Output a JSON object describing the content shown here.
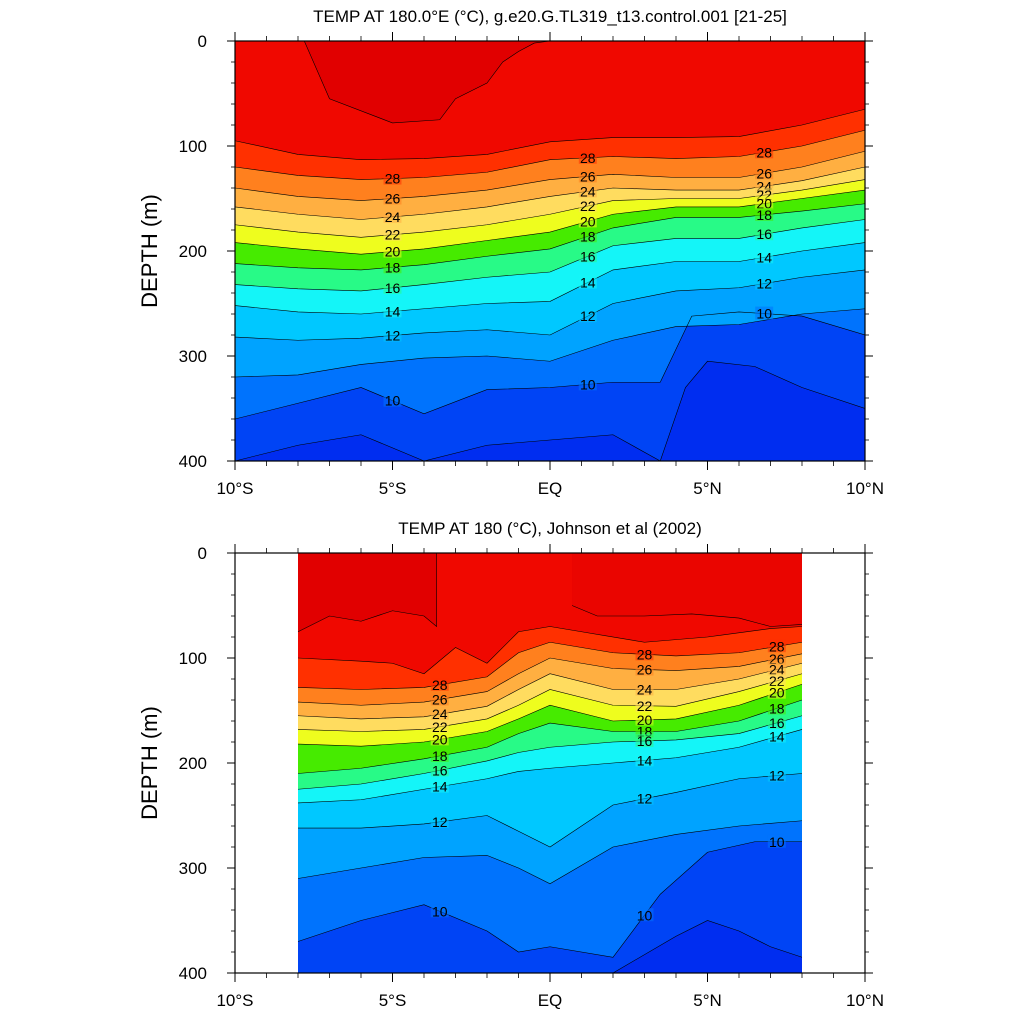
{
  "chart_data": [
    {
      "type": "contour",
      "title": "TEMP AT 180.0°E (°C), g.e20.G.TL319_t13.control.001 [21-25]",
      "xlabel": "",
      "ylabel": "DEPTH (m)",
      "xlim": [
        -10,
        10
      ],
      "ylim": [
        0,
        400
      ],
      "y_inverted": true,
      "x_ticks": [
        {
          "value": -10,
          "label": "10°S"
        },
        {
          "value": -5,
          "label": "5°S"
        },
        {
          "value": 0,
          "label": "EQ"
        },
        {
          "value": 5,
          "label": "5°N"
        },
        {
          "value": 10,
          "label": "10°N"
        }
      ],
      "y_ticks": [
        0,
        100,
        200,
        300,
        400
      ],
      "data_x_range": [
        -10,
        10
      ],
      "contour_interval": 1,
      "contour_levels_labeled": [
        28,
        26,
        24,
        22,
        20,
        18,
        16,
        14,
        12,
        10
      ],
      "isotherms": [
        {
          "level": 29.5,
          "x": [
            -7.8,
            -7.0,
            -5.0,
            -3.5,
            -3.0,
            -2.0,
            -1.5,
            -1.0,
            -0.5,
            0.0
          ],
          "depth": [
            0,
            55,
            78,
            75,
            55,
            40,
            20,
            10,
            2,
            0
          ]
        },
        {
          "level": 29.0,
          "x": [
            -10,
            -8,
            -6,
            -4,
            -2,
            0,
            2,
            4,
            6,
            8,
            10
          ],
          "depth": [
            95,
            108,
            113,
            112,
            108,
            96,
            92,
            92,
            91,
            80,
            65
          ]
        },
        {
          "level": 28,
          "x": [
            -10,
            -8,
            -6,
            -4,
            -2,
            0,
            2,
            4,
            6,
            8,
            10
          ],
          "depth": [
            120,
            128,
            132,
            130,
            125,
            113,
            110,
            112,
            110,
            100,
            85
          ]
        },
        {
          "level": 26,
          "x": [
            -10,
            -8,
            -6,
            -4,
            -2,
            0,
            2,
            4,
            6,
            8,
            10
          ],
          "depth": [
            140,
            148,
            152,
            148,
            142,
            132,
            127,
            130,
            130,
            120,
            105
          ]
        },
        {
          "level": 24,
          "x": [
            -10,
            -8,
            -6,
            -4,
            -2,
            0,
            2,
            4,
            6,
            8,
            10
          ],
          "depth": [
            158,
            165,
            170,
            165,
            158,
            148,
            140,
            142,
            142,
            133,
            120
          ]
        },
        {
          "level": 22,
          "x": [
            -10,
            -8,
            -6,
            -4,
            -2,
            0,
            2,
            4,
            6,
            8,
            10
          ],
          "depth": [
            175,
            182,
            187,
            182,
            175,
            165,
            152,
            150,
            150,
            142,
            132
          ]
        },
        {
          "level": 20,
          "x": [
            -10,
            -8,
            -6,
            -4,
            -2,
            0,
            2,
            4,
            6,
            8,
            10
          ],
          "depth": [
            192,
            198,
            203,
            198,
            190,
            182,
            165,
            158,
            158,
            150,
            142
          ]
        },
        {
          "level": 18,
          "x": [
            -10,
            -8,
            -6,
            -4,
            -2,
            0,
            2,
            4,
            6,
            8,
            10
          ],
          "depth": [
            212,
            216,
            218,
            213,
            205,
            198,
            178,
            168,
            168,
            162,
            155
          ]
        },
        {
          "level": 16,
          "x": [
            -10,
            -8,
            -6,
            -4,
            -2,
            0,
            2,
            4,
            6,
            8,
            10
          ],
          "depth": [
            232,
            236,
            238,
            232,
            225,
            220,
            195,
            188,
            188,
            178,
            170
          ]
        },
        {
          "level": 14,
          "x": [
            -10,
            -8,
            -6,
            -4,
            -2,
            0,
            2,
            4,
            6,
            8,
            10
          ],
          "depth": [
            252,
            258,
            260,
            255,
            250,
            248,
            218,
            210,
            210,
            200,
            192
          ]
        },
        {
          "level": 12,
          "x": [
            -10,
            -8,
            -6,
            -4,
            -2,
            0,
            2,
            4,
            6,
            8,
            10
          ],
          "depth": [
            282,
            285,
            283,
            278,
            275,
            280,
            250,
            238,
            235,
            225,
            218
          ]
        },
        {
          "level": 11,
          "x": [
            -10,
            -8,
            -6,
            -4,
            -2,
            0,
            2,
            4,
            6,
            8,
            10
          ],
          "depth": [
            320,
            318,
            308,
            302,
            300,
            305,
            285,
            272,
            270,
            260,
            255
          ]
        },
        {
          "level": 10,
          "x": [
            -10,
            -8,
            -6,
            -4,
            -2,
            0,
            2,
            3.5,
            4.5,
            6,
            8,
            10
          ],
          "depth": [
            360,
            345,
            330,
            355,
            332,
            330,
            325,
            325,
            262,
            258,
            262,
            280
          ]
        },
        {
          "level": 9,
          "x": [
            -10,
            -8,
            -6,
            -4,
            -2,
            0,
            2,
            3.5,
            4.3,
            5,
            6.5,
            8,
            10
          ],
          "depth": [
            400,
            385,
            375,
            400,
            385,
            380,
            375,
            400,
            330,
            305,
            310,
            330,
            350
          ]
        }
      ]
    },
    {
      "type": "contour",
      "title": "TEMP AT 180 (°C), Johnson et al (2002)",
      "xlabel": "",
      "ylabel": "DEPTH (m)",
      "xlim": [
        -10,
        10
      ],
      "ylim": [
        0,
        400
      ],
      "y_inverted": true,
      "x_ticks": [
        {
          "value": -10,
          "label": "10°S"
        },
        {
          "value": -5,
          "label": "5°S"
        },
        {
          "value": 0,
          "label": "EQ"
        },
        {
          "value": 5,
          "label": "5°N"
        },
        {
          "value": 10,
          "label": "10°N"
        }
      ],
      "y_ticks": [
        0,
        100,
        200,
        300,
        400
      ],
      "data_x_range": [
        -8,
        8
      ],
      "contour_interval": 1,
      "contour_levels_labeled": [
        28,
        26,
        24,
        22,
        20,
        18,
        16,
        14,
        12,
        10
      ],
      "isotherms": [
        {
          "level": 29.5,
          "x": [
            -8,
            -7,
            -6,
            -5,
            -4,
            -3.6,
            -3.6
          ],
          "depth": [
            75,
            60,
            65,
            55,
            60,
            70,
            0
          ]
        },
        {
          "level": 29.2,
          "x": [
            0.7,
            1.5,
            3,
            4.5,
            6,
            7,
            8
          ],
          "depth": [
            50,
            60,
            60,
            58,
            62,
            70,
            68
          ]
        },
        {
          "level": 29.0,
          "x": [
            -8,
            -6,
            -5,
            -4,
            -3,
            -2,
            -1,
            0,
            1,
            3,
            5,
            7,
            8
          ],
          "depth": [
            100,
            103,
            105,
            115,
            90,
            105,
            75,
            70,
            75,
            85,
            80,
            72,
            70
          ]
        },
        {
          "level": 28,
          "x": [
            -8,
            -6,
            -4,
            -2,
            -1,
            0,
            2,
            4,
            6,
            8
          ],
          "depth": [
            128,
            130,
            128,
            118,
            95,
            85,
            95,
            98,
            95,
            85
          ]
        },
        {
          "level": 26,
          "x": [
            -8,
            -6,
            -4,
            -2,
            -1,
            0,
            2,
            4,
            6,
            8
          ],
          "depth": [
            142,
            145,
            142,
            132,
            115,
            100,
            110,
            112,
            108,
            96
          ]
        },
        {
          "level": 24,
          "x": [
            -8,
            -6,
            -4,
            -2,
            -1,
            0,
            2,
            4,
            6,
            8
          ],
          "depth": [
            155,
            158,
            156,
            146,
            130,
            115,
            130,
            130,
            120,
            105
          ]
        },
        {
          "level": 22,
          "x": [
            -8,
            -6,
            -4,
            -2,
            -1,
            0,
            2,
            4,
            6,
            8
          ],
          "depth": [
            168,
            170,
            168,
            158,
            145,
            130,
            145,
            146,
            132,
            115
          ]
        },
        {
          "level": 20,
          "x": [
            -8,
            -6,
            -4,
            -2,
            -1,
            0,
            2,
            4,
            6,
            8
          ],
          "depth": [
            182,
            184,
            180,
            170,
            158,
            145,
            160,
            158,
            145,
            125
          ]
        },
        {
          "level": 18,
          "x": [
            -8,
            -6,
            -4,
            -2,
            -1,
            0,
            2,
            4,
            6,
            8
          ],
          "depth": [
            210,
            205,
            196,
            185,
            172,
            162,
            170,
            170,
            160,
            140
          ]
        },
        {
          "level": 16,
          "x": [
            -8,
            -6,
            -4,
            -2,
            -1,
            0,
            2,
            4,
            6,
            8
          ],
          "depth": [
            225,
            220,
            210,
            198,
            190,
            185,
            180,
            178,
            172,
            155
          ]
        },
        {
          "level": 14,
          "x": [
            -8,
            -6,
            -4,
            -2,
            -1,
            0,
            2,
            4,
            6,
            8
          ],
          "depth": [
            238,
            235,
            225,
            215,
            208,
            205,
            200,
            195,
            185,
            168
          ]
        },
        {
          "level": 12,
          "x": [
            -8,
            -6,
            -4,
            -2,
            -1,
            0,
            2,
            4,
            6,
            8
          ],
          "depth": [
            262,
            262,
            258,
            250,
            265,
            280,
            240,
            228,
            215,
            210
          ]
        },
        {
          "level": 11,
          "x": [
            -8,
            -6,
            -4,
            -2,
            -1,
            0,
            2,
            4,
            6,
            8
          ],
          "depth": [
            310,
            300,
            290,
            288,
            300,
            315,
            280,
            268,
            260,
            255
          ]
        },
        {
          "level": 10,
          "x": [
            -8,
            -6,
            -4,
            -2,
            -1,
            0,
            2,
            3.5,
            5,
            6.5,
            8
          ],
          "depth": [
            370,
            350,
            335,
            360,
            380,
            375,
            385,
            325,
            285,
            275,
            275
          ]
        },
        {
          "level": 9,
          "x": [
            -8,
            -6,
            -4,
            -2,
            0,
            2,
            4,
            5,
            6,
            7,
            8
          ],
          "depth": [
            400,
            400,
            400,
            400,
            400,
            400,
            365,
            350,
            360,
            375,
            385
          ]
        }
      ]
    }
  ]
}
